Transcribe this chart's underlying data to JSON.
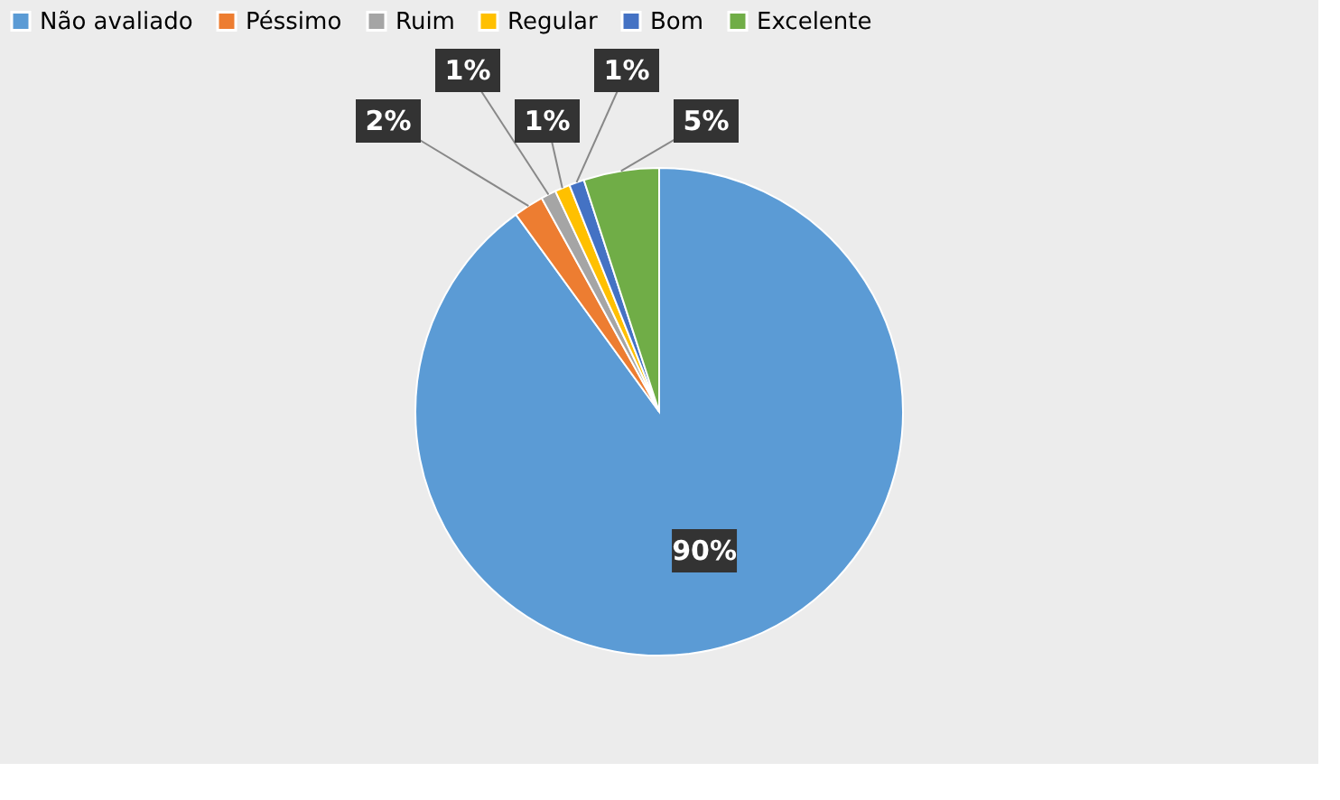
{
  "chart_data": {
    "type": "pie",
    "categories": [
      "Não avaliado",
      "Péssimo",
      "Ruim",
      "Regular",
      "Bom",
      "Excelente"
    ],
    "values": [
      90,
      2,
      1,
      1,
      1,
      5
    ],
    "colors": [
      "#5b9bd5",
      "#ed7d31",
      "#a5a5a5",
      "#ffc000",
      "#4472c4",
      "#70ad47"
    ],
    "value_labels": [
      "90%",
      "2%",
      "1%",
      "1%",
      "1%",
      "5%"
    ],
    "legend": "top"
  }
}
